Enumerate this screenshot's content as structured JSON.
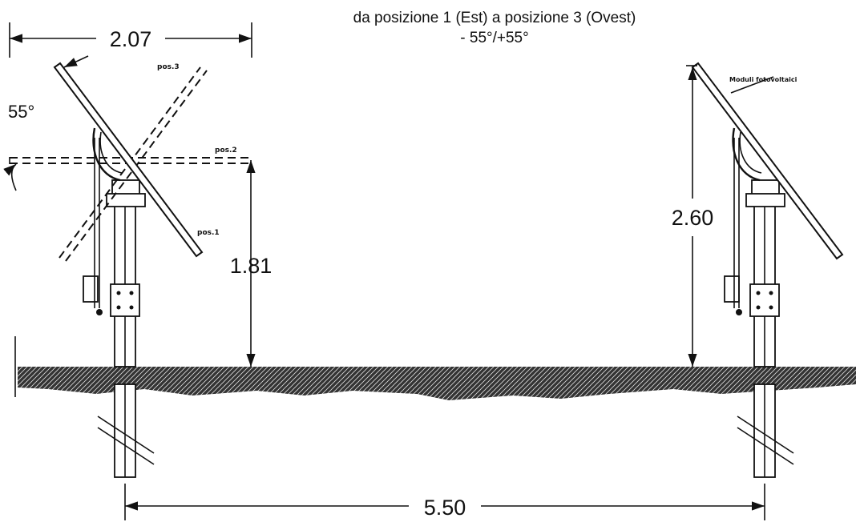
{
  "title": {
    "line1": "da posizione 1 (Est) a posizione 3 (Ovest)",
    "line2": "- 55°/+55°"
  },
  "dimensions": {
    "panel_width": "2.07",
    "angle": "55°",
    "pivot_height": "1.81",
    "max_height": "2.60",
    "row_spacing": "5.50"
  },
  "position_labels": {
    "pos1": "pos.1",
    "pos2": "pos.2",
    "pos3": "pos.3"
  },
  "module_label": "Moduli fotovoltaici"
}
